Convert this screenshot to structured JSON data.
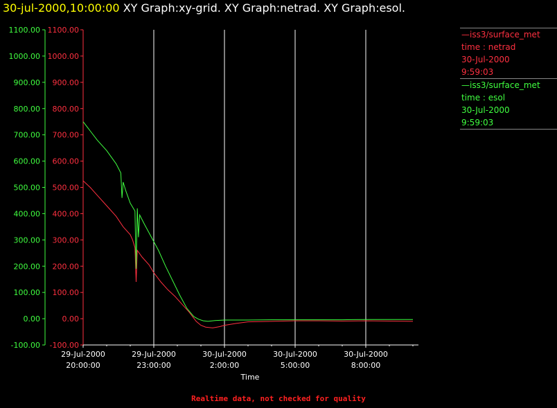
{
  "header": {
    "date_label": "30-jul-2000,10:00:00",
    "graph_titles": "XY Graph:xy-grid.  XY Graph:netrad.  XY Graph:esol."
  },
  "legend": [
    {
      "line1": "—iss3/surface_met",
      "line2": "time : netrad",
      "line3": "30-Jul-2000",
      "line4": "9:59:03",
      "color": "#ff3040"
    },
    {
      "line1": "—iss3/surface_met",
      "line2": "time : esol",
      "line3": "30-Jul-2000",
      "line4": "9:59:03",
      "color": "#40ff40"
    }
  ],
  "footer": {
    "note": "Realtime data, not checked for quality"
  },
  "colors": {
    "netrad": "#ff3040",
    "esol": "#40ff40",
    "grid": "#ffffff",
    "axis": "#ffffff"
  },
  "chart_data": {
    "type": "line",
    "xlabel": "Time",
    "x_ticks": [
      {
        "line1": "29-Jul-2000",
        "line2": "20:00:00",
        "hours": 0
      },
      {
        "line1": "29-Jul-2000",
        "line2": "23:00:00",
        "hours": 3
      },
      {
        "line1": "30-Jul-2000",
        "line2": "2:00:00",
        "hours": 6
      },
      {
        "line1": "30-Jul-2000",
        "line2": "5:00:00",
        "hours": 9
      },
      {
        "line1": "30-Jul-2000",
        "line2": "8:00:00",
        "hours": 12
      }
    ],
    "xlim_hours": [
      0,
      14.3
    ],
    "ylim": [
      -100,
      1100
    ],
    "y_ticks": [
      "1100.00",
      "1000.00",
      "900.00",
      "800.00",
      "700.00",
      "600.00",
      "500.00",
      "400.00",
      "300.00",
      "200.00",
      "100.00",
      "0.00",
      "-100.00"
    ],
    "series": [
      {
        "name": "time : netrad",
        "x_hours": [
          0,
          0.3,
          0.6,
          1.0,
          1.4,
          1.7,
          2.0,
          2.1,
          2.2,
          2.25,
          2.3,
          2.5,
          2.8,
          3.0,
          3.3,
          3.6,
          3.9,
          4.2,
          4.5,
          4.8,
          5.0,
          5.2,
          5.5,
          5.8,
          6.0,
          6.5,
          7.0,
          8.0,
          9.0,
          10.0,
          11.0,
          12.0,
          13.0,
          14.0
        ],
        "values": [
          525,
          500,
          470,
          430,
          390,
          350,
          320,
          300,
          270,
          140,
          260,
          235,
          205,
          175,
          140,
          110,
          85,
          55,
          25,
          -10,
          -25,
          -32,
          -35,
          -30,
          -25,
          -18,
          -12,
          -10,
          -8,
          -8,
          -9,
          -8,
          -9,
          -10
        ]
      },
      {
        "name": "time : esol",
        "x_hours": [
          0,
          0.3,
          0.6,
          1.0,
          1.4,
          1.6,
          1.65,
          1.7,
          1.8,
          2.0,
          2.2,
          2.25,
          2.3,
          2.35,
          2.4,
          2.6,
          2.9,
          3.2,
          3.5,
          3.8,
          4.1,
          4.4,
          4.7,
          4.9,
          5.1,
          5.3,
          5.6,
          6.0,
          7.0,
          8.0,
          9.0,
          10.0,
          11.0,
          12.0,
          13.0,
          14.0
        ],
        "values": [
          750,
          715,
          680,
          640,
          590,
          555,
          460,
          520,
          490,
          440,
          410,
          190,
          420,
          310,
          395,
          360,
          310,
          260,
          200,
          145,
          90,
          40,
          8,
          -2,
          -8,
          -10,
          -7,
          -5,
          -5,
          -4,
          -4,
          -4,
          -4,
          -3,
          -3,
          -3
        ]
      }
    ]
  }
}
